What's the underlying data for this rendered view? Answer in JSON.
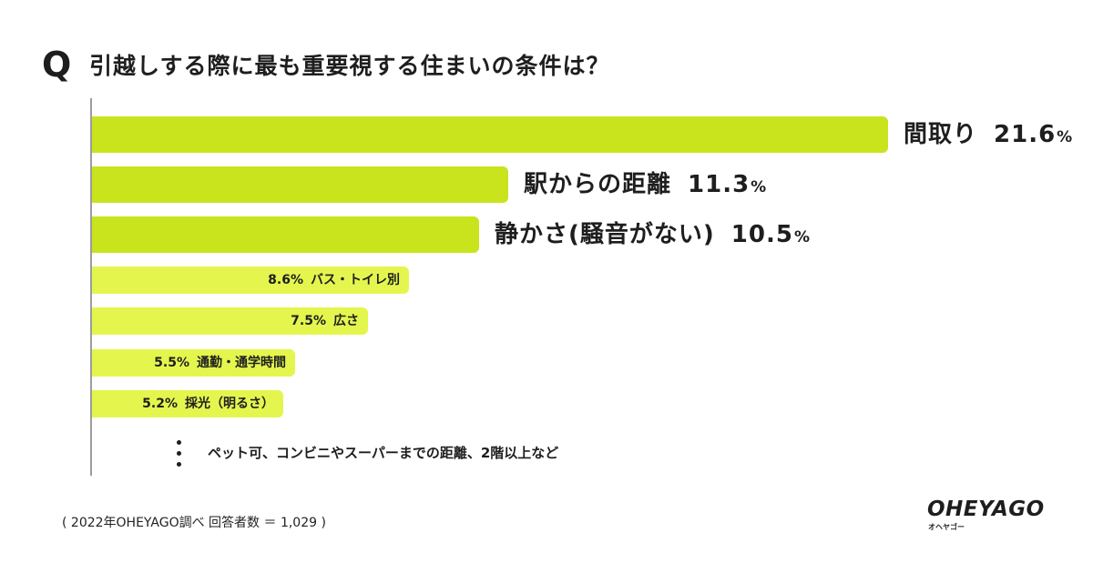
{
  "question": {
    "mark": "Q",
    "text": "引越しする際に最も重要視する住まいの条件は？"
  },
  "chart_data": {
    "type": "bar",
    "orientation": "horizontal",
    "title": "引越しする際に最も重要視する住まいの条件は？",
    "categories": [
      "間取り",
      "駅からの距離",
      "静かさ(騒音がない)",
      "バス・トイレ別",
      "広さ",
      "通勤・通学時間",
      "採光（明るさ）"
    ],
    "values": [
      21.6,
      11.3,
      10.5,
      8.6,
      7.5,
      5.5,
      5.2
    ],
    "unit": "%",
    "xlim": [
      0,
      21.6
    ],
    "bars": [
      {
        "name": "間取り",
        "value": 21.6,
        "num": "21.6",
        "unit": "%"
      },
      {
        "name": "駅からの距離",
        "value": 11.3,
        "num": "11.3",
        "unit": "%"
      },
      {
        "name": "静かさ(騒音がない)",
        "value": 10.5,
        "num": "10.5",
        "unit": "%"
      },
      {
        "name": "バス・トイレ別",
        "value": 8.6,
        "pct": "8.6%"
      },
      {
        "name": "広さ",
        "value": 7.5,
        "pct": "7.5%"
      },
      {
        "name": "通勤・通学時間",
        "value": 5.5,
        "pct": "5.5%"
      },
      {
        "name": "採光（明るさ）",
        "value": 5.2,
        "pct": "5.2%"
      }
    ],
    "others_text": "ペット可、コンビニやスーパーまでの距離、2階以上など"
  },
  "footnote": "( 2022年OHEYAGO調べ  回答者数 ＝ 1,029 )",
  "logo": {
    "main": "OHEYAGO",
    "sub": "オヘヤゴー"
  },
  "colors": {
    "top_bar": "#c9e31d",
    "other_bar": "#e4f64e",
    "axis": "#9c9c9c",
    "text": "#1e1e1e"
  }
}
